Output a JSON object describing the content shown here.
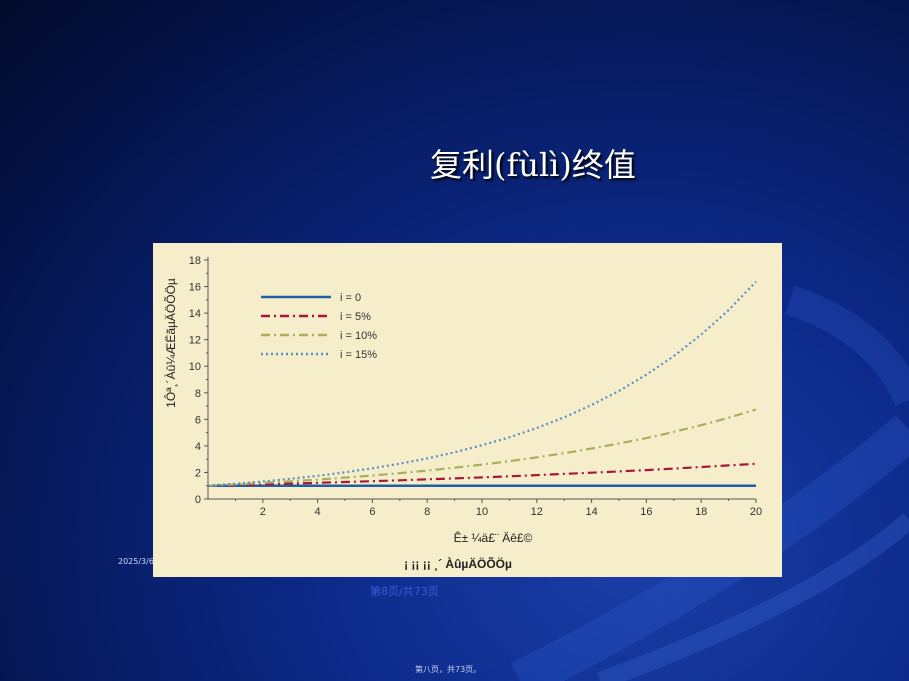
{
  "slide": {
    "title": "复利(fùlì)终值",
    "date": "2025/3/6",
    "page_link": "第8页/共73页",
    "footer": "第八页，共73页。"
  },
  "chart_data": {
    "type": "line",
    "title": "",
    "xlabel": "Ê±    ¼ä£¨ Äê£©",
    "ylabel": "1Ôª¸´Àû¼ÆËãµÄÖÕÖµ",
    "caption": "¡ ¡¡ ¡¡ ¸´ ÀûµÄÖÕÖµ",
    "xlim": [
      0,
      20
    ],
    "ylim": [
      0,
      18
    ],
    "x_ticks": [
      2,
      4,
      6,
      8,
      10,
      12,
      14,
      16,
      18,
      20
    ],
    "y_ticks": [
      0,
      2,
      4,
      6,
      8,
      10,
      12,
      14,
      16,
      18
    ],
    "x": [
      1,
      2,
      3,
      4,
      5,
      6,
      7,
      8,
      9,
      10,
      11,
      12,
      13,
      14,
      15,
      16,
      17,
      18,
      19,
      20
    ],
    "legend_position": "top-left",
    "grid": false,
    "series": [
      {
        "name": "i = 0",
        "color": "#1f5fa8",
        "dash": "solid",
        "values": [
          1,
          1,
          1,
          1,
          1,
          1,
          1,
          1,
          1,
          1,
          1,
          1,
          1,
          1,
          1,
          1,
          1,
          1,
          1,
          1
        ]
      },
      {
        "name": "i = 5%",
        "color": "#a8173a",
        "dash": "dashdot",
        "values": [
          1.05,
          1.1,
          1.16,
          1.22,
          1.28,
          1.34,
          1.41,
          1.48,
          1.55,
          1.63,
          1.71,
          1.8,
          1.89,
          1.98,
          2.08,
          2.18,
          2.29,
          2.41,
          2.53,
          2.65
        ]
      },
      {
        "name": "i = 10%",
        "color": "#a8b060",
        "dash": "dashdot",
        "values": [
          1.1,
          1.21,
          1.33,
          1.46,
          1.61,
          1.77,
          1.95,
          2.14,
          2.36,
          2.59,
          2.85,
          3.14,
          3.45,
          3.8,
          4.18,
          4.59,
          5.05,
          5.56,
          6.12,
          6.73
        ]
      },
      {
        "name": "i = 15%",
        "color": "#5a8fc8",
        "dash": "dotted",
        "values": [
          1.15,
          1.32,
          1.52,
          1.75,
          2.01,
          2.31,
          2.66,
          3.06,
          3.52,
          4.05,
          4.65,
          5.35,
          6.15,
          7.08,
          8.14,
          9.36,
          10.76,
          12.38,
          14.23,
          16.37
        ]
      }
    ]
  }
}
